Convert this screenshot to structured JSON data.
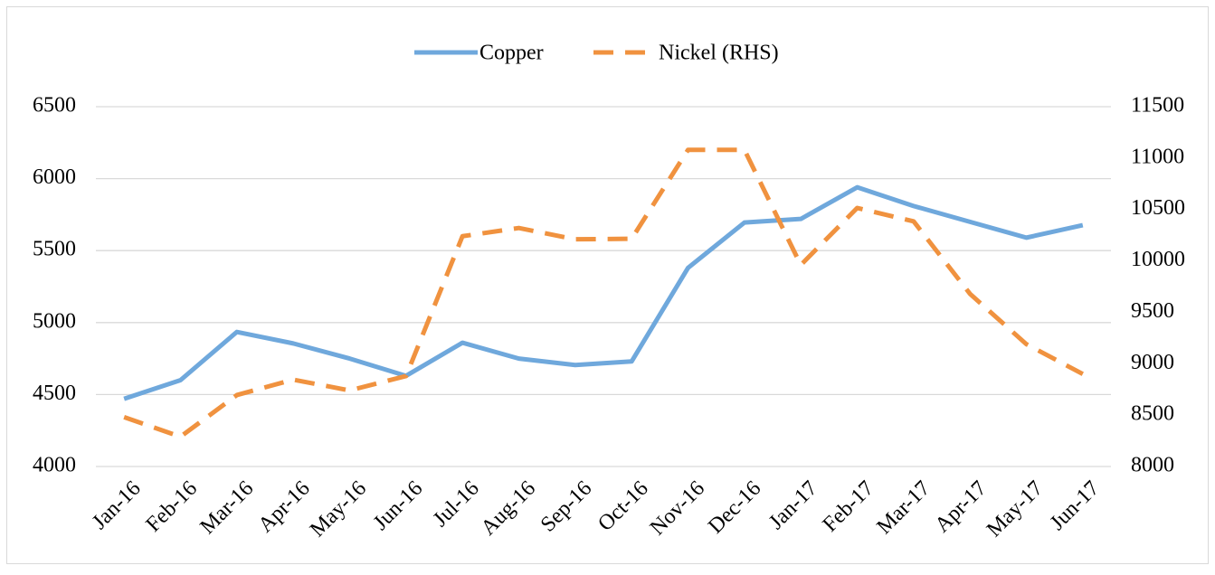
{
  "chart_data": {
    "type": "line",
    "categories": [
      "Jan-16",
      "Feb-16",
      "Mar-16",
      "Apr-16",
      "May-16",
      "Jun-16",
      "Jul-16",
      "Aug-16",
      "Sep-16",
      "Oct-16",
      "Nov-16",
      "Dec-16",
      "Jan-17",
      "Feb-17",
      "Mar-17",
      "Apr-17",
      "May-17",
      "Jun-17"
    ],
    "series": [
      {
        "name": "Copper",
        "color": "#6fa8dc",
        "dash": false,
        "axis": "y",
        "values": [
          4470,
          4600,
          4935,
          4855,
          4750,
          4630,
          4860,
          4750,
          4705,
          4730,
          5380,
          5695,
          5720,
          5940,
          5810,
          5700,
          5590,
          5677
        ]
      },
      {
        "name": "Nickel (RHS)",
        "color": "#f0923f",
        "dash": true,
        "axis": "y2",
        "values": [
          8480,
          8290,
          8695,
          8845,
          8740,
          8880,
          10240,
          10320,
          10210,
          10215,
          11080,
          11080,
          9960,
          10515,
          10385,
          9680,
          9190,
          8900
        ]
      }
    ],
    "ylim": [
      4000,
      6500
    ],
    "yticks": [
      4000,
      4500,
      5000,
      5500,
      6000,
      6500
    ],
    "y2lim": [
      8000,
      11500
    ],
    "y2ticks": [
      8000,
      8500,
      9000,
      9500,
      10000,
      10500,
      11000,
      11500
    ],
    "grid": true,
    "legend": "top"
  }
}
